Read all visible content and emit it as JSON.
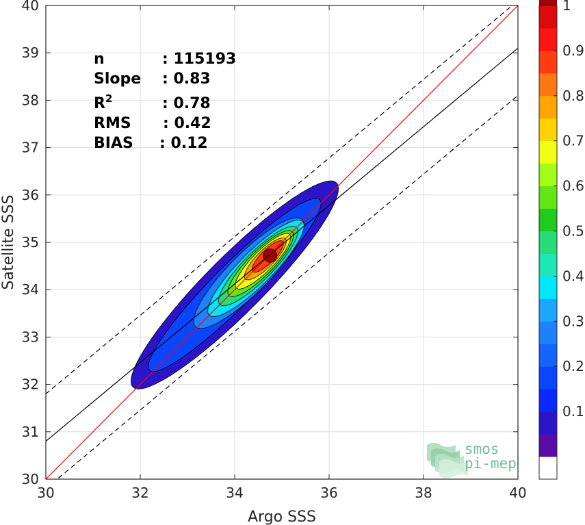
{
  "chart_data": {
    "type": "heatmap",
    "subtype": "density-contour-scatter",
    "xlabel": "Argo SSS",
    "ylabel": "Satellite SSS",
    "xlim": [
      30,
      40
    ],
    "ylim": [
      30,
      40
    ],
    "xticks": [
      "30",
      "32",
      "34",
      "36",
      "38",
      "40"
    ],
    "yticks": [
      "30",
      "31",
      "32",
      "33",
      "34",
      "35",
      "36",
      "37",
      "38",
      "39",
      "40"
    ],
    "grid": true,
    "stats": [
      {
        "label": "n",
        "value": ": 115193"
      },
      {
        "label": "Slope",
        "value": ": 0.83"
      },
      {
        "label": "R",
        "sup": "2",
        "value": ": 0.78"
      },
      {
        "label": "RMS",
        "value": ": 0.42"
      },
      {
        "label": "BIAS",
        "value": ": 0.12"
      }
    ],
    "lines": [
      {
        "role": "identity",
        "color": "#ff0000",
        "style": "solid",
        "x": [
          30,
          40
        ],
        "y": [
          30,
          40
        ]
      },
      {
        "role": "regression",
        "color": "#000000",
        "style": "solid",
        "x": [
          30,
          40
        ],
        "y": [
          30.8,
          39.1
        ]
      },
      {
        "role": "regression-upper",
        "color": "#000000",
        "style": "dashed",
        "x": [
          30,
          40
        ],
        "y": [
          31.8,
          40.1
        ]
      },
      {
        "role": "regression-lower",
        "color": "#000000",
        "style": "dashed",
        "x": [
          30,
          40
        ],
        "y": [
          29.8,
          38.1
        ]
      }
    ],
    "density": {
      "peak": {
        "x": 34.75,
        "y": 34.72
      },
      "levels": [
        {
          "level": 0.05,
          "center": [
            34.0,
            34.1
          ],
          "half_len": 3.05,
          "half_wid": 0.6
        },
        {
          "level": 0.15,
          "center": [
            34.0,
            34.1
          ],
          "half_len": 2.55,
          "half_wid": 0.44
        },
        {
          "level": 0.25,
          "center": [
            34.3,
            34.35
          ],
          "half_len": 1.6,
          "half_wid": 0.42
        },
        {
          "level": 0.35,
          "center": [
            34.45,
            34.45
          ],
          "half_len": 1.4,
          "half_wid": 0.35
        },
        {
          "level": 0.45,
          "center": [
            34.5,
            34.5
          ],
          "half_len": 1.15,
          "half_wid": 0.3
        },
        {
          "level": 0.55,
          "center": [
            34.55,
            34.55
          ],
          "half_len": 0.95,
          "half_wid": 0.26
        },
        {
          "level": 0.65,
          "center": [
            34.6,
            34.6
          ],
          "half_len": 0.8,
          "half_wid": 0.22
        },
        {
          "level": 0.75,
          "center": [
            34.65,
            34.65
          ],
          "half_len": 0.6,
          "half_wid": 0.18
        },
        {
          "level": 0.85,
          "center": [
            34.7,
            34.7
          ],
          "half_len": 0.45,
          "half_wid": 0.14
        }
      ]
    },
    "colorbar": {
      "range": [
        0,
        1
      ],
      "ticks": [
        "0.1",
        "0.2",
        "0.3",
        "0.4",
        "0.5",
        "0.6",
        "0.7",
        "0.8",
        "0.9",
        "1"
      ],
      "colors": [
        "#5a0aa6",
        "#2c14c8",
        "#0a28ff",
        "#0a46ff",
        "#1464ff",
        "#1e82ff",
        "#1ea5ff",
        "#00e6ff",
        "#1ee6b4",
        "#28dc78",
        "#1ecc1e",
        "#64e614",
        "#a0ff14",
        "#f0ff14",
        "#ffd200",
        "#ffa500",
        "#ff7814",
        "#ff3c14",
        "#ff1414",
        "#dc0a0a",
        "#a00000"
      ]
    },
    "logo": {
      "line1": "smos",
      "line2": "pi-mep"
    }
  }
}
